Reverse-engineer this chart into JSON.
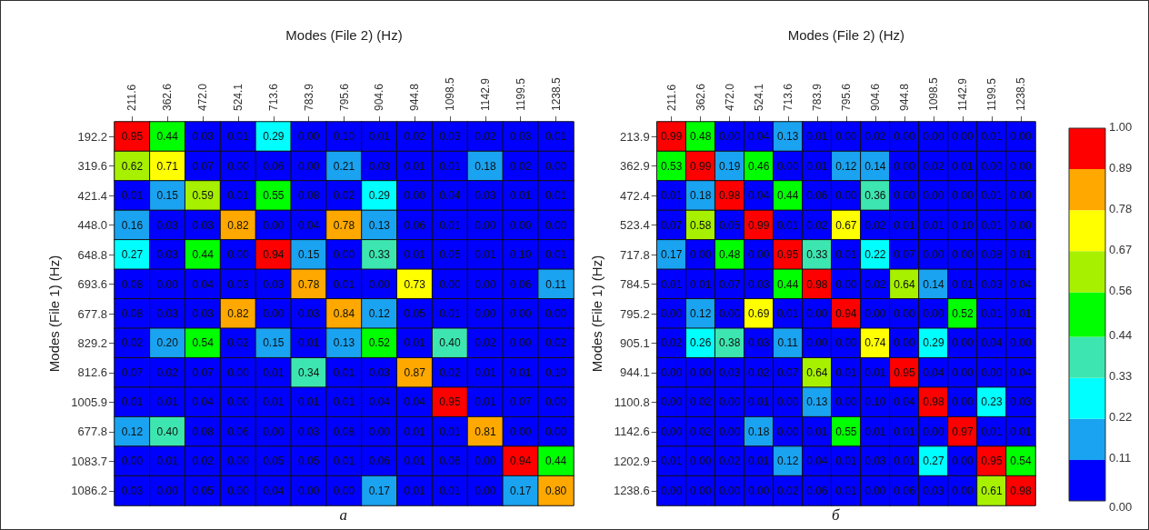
{
  "chart_data": [
    {
      "type": "heatmap",
      "xlabel": "Modes (File 2) (Hz)",
      "ylabel": "Modes (File 1) (Hz)",
      "categories": [
        "211.6",
        "362.6",
        "472.0",
        "524.1",
        "713.6",
        "783.9",
        "795.6",
        "904.6",
        "944.8",
        "1098.5",
        "1142.9",
        "1199.5",
        "1238.5"
      ],
      "y_categories": [
        "192.2",
        "319.6",
        "421.4",
        "448.0",
        "648.8",
        "693.6",
        "677.8",
        "829.2",
        "812.6",
        "1005.9",
        "677.8",
        "1083.7",
        "1086.2"
      ],
      "cells": [
        [
          0.95,
          0.44,
          0.03,
          0.01,
          0.29,
          0.0,
          0.1,
          0.01,
          0.02,
          0.03,
          0.02,
          0.03,
          0.01
        ],
        [
          0.62,
          0.71,
          0.07,
          0.0,
          0.06,
          0.0,
          0.21,
          0.03,
          0.01,
          0.01,
          0.18,
          0.02,
          0.0
        ],
        [
          0.01,
          0.15,
          0.59,
          0.01,
          0.55,
          0.08,
          0.02,
          0.29,
          0.0,
          0.04,
          0.03,
          0.01,
          0.01
        ],
        [
          0.16,
          0.03,
          0.03,
          0.82,
          0.0,
          0.04,
          0.78,
          0.13,
          0.06,
          0.01,
          0.0,
          0.0,
          0.0
        ],
        [
          0.27,
          0.03,
          0.44,
          0.0,
          0.94,
          0.15,
          0.0,
          0.33,
          0.01,
          0.05,
          0.01,
          0.1,
          0.01
        ],
        [
          0.08,
          0.0,
          0.04,
          0.03,
          0.03,
          0.78,
          0.01,
          0.0,
          0.73,
          0.0,
          0.0,
          0.06,
          0.11
        ],
        [
          0.08,
          0.03,
          0.03,
          0.82,
          0.0,
          0.03,
          0.84,
          0.12,
          0.05,
          0.01,
          0.0,
          0.0,
          0.0
        ],
        [
          0.02,
          0.2,
          0.54,
          0.02,
          0.15,
          0.01,
          0.13,
          0.52,
          0.01,
          0.4,
          0.02,
          0.0,
          0.02
        ],
        [
          0.07,
          0.02,
          0.07,
          0.0,
          0.01,
          0.34,
          0.01,
          0.03,
          0.87,
          0.02,
          0.01,
          0.01,
          0.1
        ],
        [
          0.01,
          0.01,
          0.04,
          0.0,
          0.01,
          0.01,
          0.01,
          0.04,
          0.04,
          0.95,
          0.01,
          0.07,
          0.0
        ],
        [
          0.12,
          0.4,
          0.08,
          0.06,
          0.0,
          0.03,
          0.08,
          0.0,
          0.01,
          0.01,
          0.81,
          0.0,
          0.0
        ],
        [
          0.0,
          0.01,
          0.02,
          0.0,
          0.05,
          0.05,
          0.01,
          0.06,
          0.01,
          0.06,
          0.0,
          0.94,
          0.44
        ],
        [
          0.03,
          0.0,
          0.05,
          0.0,
          0.04,
          0.0,
          0.0,
          0.17,
          0.01,
          0.01,
          0.0,
          0.17,
          0.8
        ]
      ],
      "cell_labels": [
        [
          "0.95",
          "0.44",
          "0.03",
          "0.01",
          "0.29",
          "0.00",
          "0.10",
          "0.01",
          "0.02",
          "0.03",
          "0.02",
          "0.03",
          "0.01"
        ],
        [
          "0.62",
          "0.71",
          "0.07",
          "0.00",
          "0.06",
          "0.00",
          "0.21",
          "0.03",
          "0.01",
          "0.01",
          "0.18",
          "0.02",
          "0.00"
        ],
        [
          "0.01",
          "0.15",
          "0.59",
          "0.01",
          "0.55",
          "0.08",
          "0.02",
          "0.29",
          "0.00",
          "0.04",
          "0.03",
          "0.01",
          "0.01"
        ],
        [
          "0.16",
          "0.03",
          "0.03",
          "0.82",
          "0.00",
          "0.04",
          "0.78",
          "0.13",
          "0.06",
          "0.01",
          "0.00",
          "0.00",
          "0.00"
        ],
        [
          "0.27",
          "0.03",
          "0.44",
          "0.00",
          "0.94",
          "0.15",
          "0.00",
          "0.33",
          "0.01",
          "0.05",
          "0.01",
          "0.10",
          "0.01"
        ],
        [
          "0.08",
          "0.00",
          "0.04",
          "0.03",
          "0.03",
          "0.78",
          "0.01",
          "0.00",
          "0.73",
          "0.00",
          "0.00",
          "0.06",
          "0.11"
        ],
        [
          "0.08",
          "0.03",
          "0.03",
          "0.82",
          "0.00",
          "0.03",
          "0.84",
          "0.12",
          "0.05",
          "0.01",
          "0.00",
          "0.00",
          "0.00"
        ],
        [
          "0.02",
          "0.20",
          "0.54",
          "0.02",
          "0.15",
          "0.01",
          "0.13",
          "0.52",
          "0.01",
          "0.40",
          "0.02",
          "0.00",
          "0.02"
        ],
        [
          "0.07",
          "0.02",
          "0.07",
          "0.00",
          "0.01",
          "0.34",
          "0.01",
          "0.03",
          "0.87",
          "0.02",
          "0.01",
          "0.01",
          "0.10"
        ],
        [
          "0.01",
          "0.01",
          "0.04",
          "0.00",
          "0.01",
          "0.01",
          "0.01",
          "0.04",
          "0.04",
          "0.95",
          "0.01",
          "0.07",
          "0.00"
        ],
        [
          "0.12",
          "0.40",
          "0.08",
          "0.06",
          "0.00",
          "0.03",
          "0.08",
          "0.00",
          "0.01",
          "0.01",
          "0.81",
          "0.00",
          "0.00"
        ],
        [
          "0.00",
          "0.01",
          "0.02",
          "0.00",
          "0.05",
          "0.05",
          "0.01",
          "0.06",
          "0.01",
          "0.06",
          "0.00",
          "0.94",
          "0.44"
        ],
        [
          "0.03",
          "0.00",
          "0.05",
          "0.00",
          "0.04",
          "0.00",
          "0.00",
          "0.17",
          "0.01",
          "0.01",
          "0.00",
          "0.17",
          "0.80"
        ]
      ],
      "data_labels": true,
      "annotations": [
        "а"
      ]
    },
    {
      "type": "heatmap",
      "xlabel": "Modes (File 2) (Hz)",
      "ylabel": "Modes (File 1) (Hz)",
      "categories": [
        "211.6",
        "362.6",
        "472.0",
        "524.1",
        "713.6",
        "783.9",
        "795.6",
        "904.6",
        "944.8",
        "1098.5",
        "1142.9",
        "1199.5",
        "1238.5"
      ],
      "y_categories": [
        "213.9",
        "362.9",
        "472.4",
        "523.4",
        "717.8",
        "784.5",
        "795.2",
        "905.1",
        "944.1",
        "1100.8",
        "1142.6",
        "1202.9",
        "1238.6"
      ],
      "cells": [
        [
          0.99,
          0.48,
          0.0,
          0.04,
          0.13,
          0.01,
          0.0,
          0.02,
          0.0,
          0.0,
          0.0,
          0.01,
          0.0
        ],
        [
          0.53,
          0.99,
          0.19,
          0.46,
          0.0,
          0.01,
          0.12,
          0.14,
          0.0,
          0.02,
          0.01,
          0.0,
          0.0
        ],
        [
          0.01,
          0.18,
          0.98,
          0.04,
          0.44,
          0.06,
          0.0,
          0.36,
          0.0,
          0.0,
          0.0,
          0.01,
          0.0
        ],
        [
          0.07,
          0.58,
          0.05,
          0.99,
          0.01,
          0.02,
          0.67,
          0.02,
          0.01,
          0.01,
          0.1,
          0.01,
          0.0
        ],
        [
          0.17,
          0.0,
          0.48,
          0.0,
          0.95,
          0.33,
          0.01,
          0.22,
          0.07,
          0.0,
          0.0,
          0.08,
          0.01
        ],
        [
          0.01,
          0.01,
          0.07,
          0.03,
          0.44,
          0.98,
          0.0,
          0.02,
          0.64,
          0.14,
          0.01,
          0.03,
          0.04
        ],
        [
          0.0,
          0.12,
          0.0,
          0.69,
          0.01,
          0.0,
          0.94,
          0.0,
          0.0,
          0.0,
          0.52,
          0.01,
          0.01
        ],
        [
          0.02,
          0.26,
          0.38,
          0.03,
          0.11,
          0.0,
          0.0,
          0.74,
          0.0,
          0.29,
          0.0,
          0.04,
          0.0
        ],
        [
          0.0,
          0.0,
          0.03,
          0.02,
          0.07,
          0.64,
          0.01,
          0.01,
          0.95,
          0.04,
          0.0,
          0.0,
          0.04
        ],
        [
          0.0,
          0.02,
          0.0,
          0.01,
          0.0,
          0.13,
          0.0,
          0.1,
          0.04,
          0.98,
          0.0,
          0.23,
          0.03
        ],
        [
          0.0,
          0.02,
          0.0,
          0.18,
          0.0,
          0.01,
          0.55,
          0.01,
          0.01,
          0.0,
          0.97,
          0.01,
          0.01
        ],
        [
          0.01,
          0.0,
          0.02,
          0.01,
          0.12,
          0.04,
          0.01,
          0.03,
          0.01,
          0.27,
          0.0,
          0.95,
          0.54
        ],
        [
          0.0,
          0.0,
          0.0,
          0.0,
          0.02,
          0.06,
          0.01,
          0.0,
          0.06,
          0.03,
          0.0,
          0.61,
          0.98
        ]
      ],
      "cell_labels": [
        [
          "0.99",
          "0.48",
          "0.00",
          "0.04",
          "0.13",
          "0.01",
          "0.00",
          "0.02",
          "0.00",
          "0.00",
          "0.00",
          "0.01",
          "0.00"
        ],
        [
          "0.53",
          "0.99",
          "0.19",
          "0.46",
          "0.00",
          "0.01",
          "0.12",
          "0.14",
          "0.00",
          "0.02",
          "0.01",
          "0.00",
          "0.00"
        ],
        [
          "0.01",
          "0.18",
          "0.98",
          "0.04",
          "0.44",
          "0.06",
          "0.00",
          "0.36",
          "0.00",
          "0.00",
          "0.00",
          "0.01",
          "0.00"
        ],
        [
          "0.07",
          "0.58",
          "0.05",
          "0.99",
          "0.01",
          "0.02",
          "0.67",
          "0.02",
          "0.01",
          "0.01",
          "0.10",
          "0.01",
          "0.00"
        ],
        [
          "0.17",
          "0.00",
          "0.48",
          "0.00",
          "0.95",
          "0.33",
          "0.01",
          "0.22",
          "0.07",
          "0.00",
          "0.00",
          "0.08",
          "0.01"
        ],
        [
          "0.01",
          "0.01",
          "0.07",
          "0.03",
          "0.44",
          "0.98",
          "0.00",
          "0.02",
          "0.64",
          "0.14",
          "0.01",
          "0.03",
          "0.04"
        ],
        [
          "0.00",
          "0.12",
          "0.00",
          "0.69",
          "0.01",
          "0.00",
          "0.94",
          "0.00",
          "0.00",
          "0.00",
          "0.52",
          "0.01",
          "0.01"
        ],
        [
          "0.02",
          "0.26",
          "0.38",
          "0.03",
          "0.11",
          "0.00",
          "0.00",
          "0.74",
          "0.00",
          "0.29",
          "0.00",
          "0.04",
          "0.00"
        ],
        [
          "0.00",
          "0.00",
          "0.03",
          "0.02",
          "0.07",
          "0.64",
          "0.01",
          "0.01",
          "0.95",
          "0.04",
          "0.00",
          "0.00",
          "0.04"
        ],
        [
          "0.00",
          "0.02",
          "0.00",
          "0.01",
          "0.00",
          "0.13",
          "0.00",
          "0.10",
          "0.04",
          "0.98",
          "0.00",
          "0.23",
          "0.03"
        ],
        [
          "0.00",
          "0.02",
          "0.00",
          "0.18",
          "0.00",
          "0.01",
          "0.55",
          "0.01",
          "0.01",
          "0.00",
          "0.97",
          "0.01",
          "0.01"
        ],
        [
          "0.01",
          "0.00",
          "0.02",
          "0.01",
          "0.12",
          "0.04",
          "0.01",
          "0.03",
          "0.01",
          "0.27",
          "0.00",
          "0.95",
          "0.54"
        ],
        [
          "0.00",
          "0.00",
          "0.00",
          "0.00",
          "0.02",
          "0.06",
          "0.01",
          "0.00",
          "0.06",
          "0.03",
          "0.00",
          "0.61",
          "0.98"
        ]
      ],
      "data_labels": true,
      "clim": [
        0,
        1
      ],
      "cticks": [
        {
          "value": 0,
          "label": "0.00"
        },
        {
          "value": 0.11,
          "label": "0.11"
        },
        {
          "value": 0.22,
          "label": "0.22"
        },
        {
          "value": 0.33,
          "label": "0.33"
        },
        {
          "value": 0.44,
          "label": "0.44"
        },
        {
          "value": 0.56,
          "label": "0.56"
        },
        {
          "value": 0.67,
          "label": "0.67"
        },
        {
          "value": 0.78,
          "label": "0.78"
        },
        {
          "value": 0.89,
          "label": "0.89"
        },
        {
          "value": 1,
          "label": "1.00"
        }
      ],
      "colors": [
        "#0000ff",
        "#1aa3f0",
        "#00ffff",
        "#3de6b0",
        "#00ff00",
        "#a6f000",
        "#ffff00",
        "#ffa800",
        "#ff0000"
      ],
      "annotations": [
        "б"
      ]
    }
  ]
}
